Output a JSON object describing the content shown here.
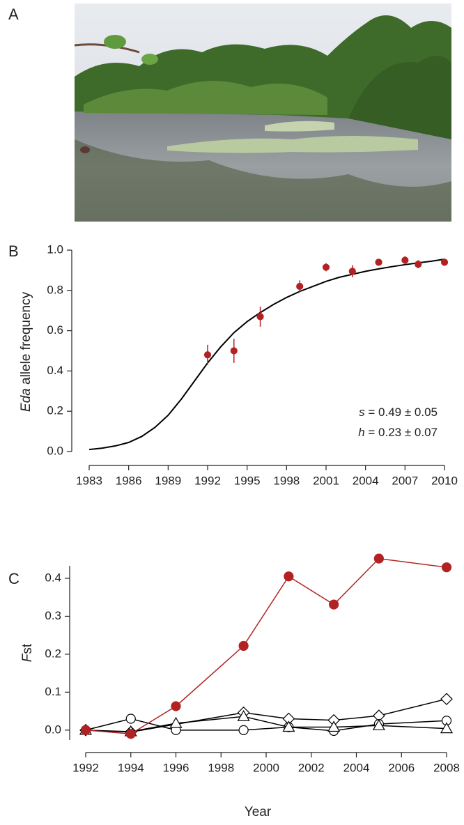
{
  "photo": {
    "panel_label": "A"
  },
  "chart_data": [
    {
      "type": "line",
      "panel_label": "B",
      "y_label": "Eda allele frequency",
      "xlim": [
        1983,
        2010
      ],
      "xticks": [
        1983,
        1986,
        1989,
        1992,
        1995,
        1998,
        2001,
        2004,
        2007,
        2010
      ],
      "ylim": [
        0,
        1
      ],
      "yticks": [
        {
          "value": 0,
          "label": "0.0"
        },
        {
          "value": 0.2,
          "label": "0.2"
        },
        {
          "value": 0.4,
          "label": "0.4"
        },
        {
          "value": 0.6,
          "label": "0.6"
        },
        {
          "value": 0.8,
          "label": "0.8"
        },
        {
          "value": 1,
          "label": "1.0"
        }
      ],
      "annotations": [
        "s = 0.49 ± 0.05",
        "h = 0.23 ± 0.07"
      ],
      "series": [
        {
          "style": "line",
          "marker": "none",
          "color": "#000000",
          "x": [
            1983,
            1984,
            1985,
            1986,
            1987,
            1988,
            1989,
            1990,
            1991,
            1992,
            1993,
            1994,
            1995,
            1996,
            1997,
            1998,
            1999,
            2000,
            2001,
            2002,
            2003,
            2004,
            2005,
            2006,
            2007,
            2008,
            2009,
            2010
          ],
          "values": [
            0.01,
            0.017,
            0.028,
            0.045,
            0.075,
            0.12,
            0.18,
            0.26,
            0.35,
            0.44,
            0.52,
            0.59,
            0.645,
            0.69,
            0.73,
            0.765,
            0.795,
            0.82,
            0.845,
            0.865,
            0.88,
            0.895,
            0.907,
            0.918,
            0.928,
            0.937,
            0.945,
            0.955
          ]
        },
        {
          "style": "points",
          "marker": "filled-circle",
          "color": "#b22222",
          "x": [
            1992,
            1994,
            1996,
            1999,
            2001,
            2003,
            2005,
            2007,
            2008,
            2010
          ],
          "values": [
            0.48,
            0.5,
            0.67,
            0.82,
            0.915,
            0.895,
            0.94,
            0.95,
            0.93,
            0.94
          ],
          "errors": [
            0.05,
            0.06,
            0.05,
            0.03,
            0.02,
            0.03,
            0.015,
            0.02,
            0.02,
            0.015
          ]
        }
      ]
    },
    {
      "type": "line",
      "panel_label": "C",
      "y_label": "Fst",
      "x_label": "Year",
      "xlim": [
        1992,
        2008
      ],
      "xticks": [
        1992,
        1994,
        1996,
        1998,
        2000,
        2002,
        2004,
        2006,
        2008
      ],
      "ylim": [
        -0.026,
        0.433
      ],
      "yticks": [
        {
          "value": 0,
          "label": "0.0"
        },
        {
          "value": 0.1,
          "label": "0.1"
        },
        {
          "value": 0.2,
          "label": "0.2"
        },
        {
          "value": 0.3,
          "label": "0.3"
        },
        {
          "value": 0.4,
          "label": "0.4"
        }
      ],
      "series": [
        {
          "style": "line-points",
          "marker": "diamond",
          "color": "#000000",
          "x": [
            1992,
            1994,
            1999,
            2001,
            2003,
            2005,
            2008
          ],
          "values": [
            0.0,
            -0.005,
            0.046,
            0.03,
            0.026,
            0.038,
            0.082
          ]
        },
        {
          "style": "line-points",
          "marker": "circle",
          "color": "#000000",
          "x": [
            1992,
            1994,
            1996,
            1999,
            2001,
            2003,
            2005,
            2008
          ],
          "values": [
            0.0,
            0.03,
            0.0,
            0.0,
            0.008,
            -0.002,
            0.016,
            0.025
          ]
        },
        {
          "style": "line-points",
          "marker": "triangle",
          "color": "#000000",
          "x": [
            1992,
            1994,
            1996,
            1999,
            2001,
            2003,
            2005,
            2008
          ],
          "values": [
            0.0,
            -0.004,
            0.018,
            0.036,
            0.008,
            0.008,
            0.012,
            0.004
          ]
        },
        {
          "style": "line-points",
          "marker": "filled-circle",
          "color": "#b22222",
          "x": [
            1992,
            1994,
            1996,
            1999,
            2001,
            2003,
            2005,
            2008
          ],
          "values": [
            0.0,
            -0.01,
            0.063,
            0.222,
            0.405,
            0.331,
            0.452,
            0.429
          ]
        }
      ]
    }
  ]
}
